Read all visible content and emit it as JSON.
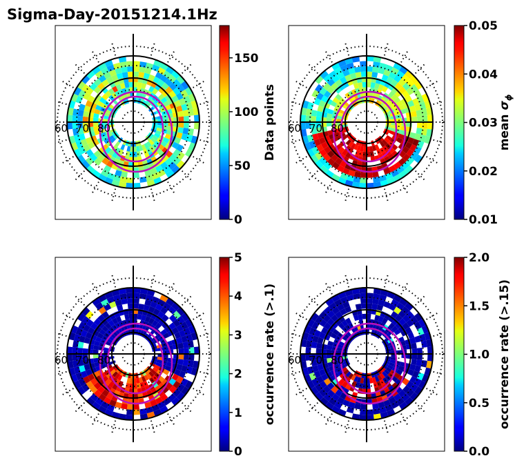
{
  "title": "Sigma-Day-20151214.1Hz",
  "lat_labels": [
    "60",
    "70",
    "80"
  ],
  "chart_data": [
    {
      "type": "heatmap",
      "projection": "polar",
      "grid": true,
      "colormap": "jet",
      "colorbar": {
        "label": "Data points",
        "ticks": [
          "0",
          "50",
          "100",
          "150"
        ],
        "range": [
          0,
          180
        ]
      }
    },
    {
      "type": "heatmap",
      "projection": "polar",
      "grid": true,
      "colormap": "jet",
      "colorbar": {
        "label": "mean σϕ",
        "label_main": "mean ",
        "label_symbol": "σ",
        "label_sub": "ϕ",
        "ticks": [
          "0.01",
          "0.02",
          "0.03",
          "0.04",
          "0.05"
        ],
        "range": [
          0.01,
          0.05
        ]
      }
    },
    {
      "type": "heatmap",
      "projection": "polar",
      "grid": true,
      "colormap": "jet",
      "colorbar": {
        "label": "occurrence rate (>.1)",
        "ticks": [
          "0",
          "1",
          "2",
          "3",
          "4",
          "5"
        ],
        "range": [
          0,
          5
        ]
      }
    },
    {
      "type": "heatmap",
      "projection": "polar",
      "grid": true,
      "colormap": "jet",
      "colorbar": {
        "label": "occurrence rate (>.15)",
        "ticks": [
          "0.0",
          "0.5",
          "1.0",
          "1.5",
          "2.0"
        ],
        "range": [
          0,
          2
        ]
      }
    }
  ]
}
